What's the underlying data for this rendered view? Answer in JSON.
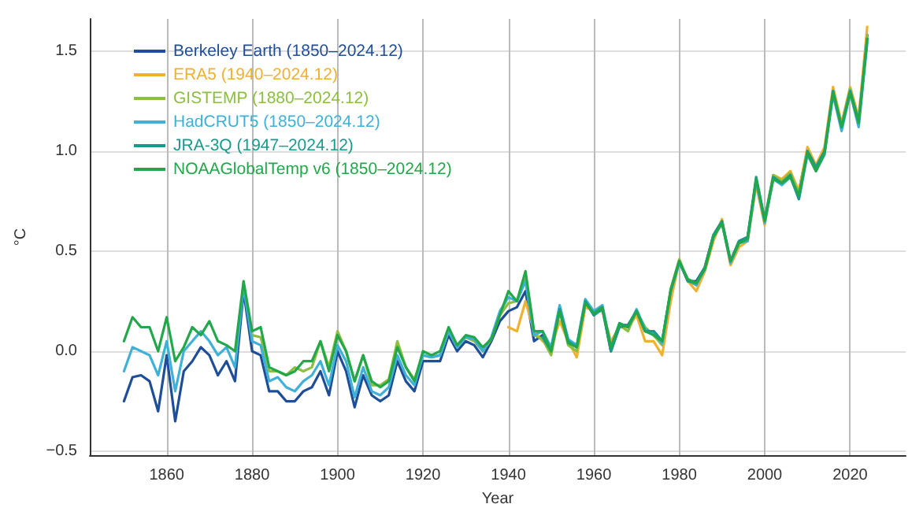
{
  "chart_data": {
    "type": "line",
    "xlabel": "Year",
    "ylabel": "°C",
    "x": [
      1850,
      1852,
      1854,
      1856,
      1858,
      1860,
      1862,
      1864,
      1866,
      1868,
      1870,
      1872,
      1874,
      1876,
      1878,
      1880,
      1882,
      1884,
      1886,
      1888,
      1890,
      1892,
      1894,
      1896,
      1898,
      1900,
      1902,
      1904,
      1906,
      1908,
      1910,
      1912,
      1914,
      1916,
      1918,
      1920,
      1922,
      1924,
      1926,
      1928,
      1930,
      1932,
      1934,
      1936,
      1938,
      1940,
      1942,
      1944,
      1946,
      1948,
      1950,
      1952,
      1954,
      1956,
      1958,
      1960,
      1962,
      1964,
      1966,
      1968,
      1970,
      1972,
      1974,
      1976,
      1978,
      1980,
      1982,
      1984,
      1986,
      1988,
      1990,
      1992,
      1994,
      1996,
      1998,
      2000,
      2002,
      2004,
      2006,
      2008,
      2010,
      2012,
      2014,
      2016,
      2018,
      2020,
      2022,
      2024
    ],
    "series": [
      {
        "name": "Berkeley Earth (1850–2024.12)",
        "color": "#1f4e99",
        "values": [
          -0.25,
          -0.13,
          -0.12,
          -0.15,
          -0.3,
          -0.02,
          -0.35,
          -0.1,
          -0.05,
          0.02,
          -0.02,
          -0.12,
          -0.05,
          -0.15,
          0.3,
          0.0,
          -0.02,
          -0.2,
          -0.2,
          -0.25,
          -0.25,
          -0.2,
          -0.18,
          -0.1,
          -0.22,
          0.0,
          -0.1,
          -0.28,
          -0.12,
          -0.22,
          -0.25,
          -0.22,
          -0.05,
          -0.15,
          -0.2,
          -0.05,
          -0.05,
          -0.05,
          0.08,
          0.0,
          0.05,
          0.03,
          -0.03,
          0.05,
          0.15,
          0.2,
          0.22,
          0.3,
          0.05,
          0.08,
          0.0,
          0.22,
          0.05,
          0.02,
          0.25,
          0.18,
          0.22,
          0.0,
          0.13,
          0.13,
          0.2,
          0.1,
          0.1,
          0.05,
          0.3,
          0.45,
          0.35,
          0.35,
          0.42,
          0.58,
          0.65,
          0.45,
          0.55,
          0.57,
          0.85,
          0.65,
          0.87,
          0.85,
          0.88,
          0.8,
          1.0,
          0.92,
          1.0,
          1.3,
          1.13,
          1.3,
          1.15,
          1.58
        ]
      },
      {
        "name": "ERA5 (1940–2024.12)",
        "color": "#f0b030",
        "values": [
          null,
          null,
          null,
          null,
          null,
          null,
          null,
          null,
          null,
          null,
          null,
          null,
          null,
          null,
          null,
          null,
          null,
          null,
          null,
          null,
          null,
          null,
          null,
          null,
          null,
          null,
          null,
          null,
          null,
          null,
          null,
          null,
          null,
          null,
          null,
          null,
          null,
          null,
          null,
          null,
          null,
          null,
          null,
          null,
          null,
          0.12,
          0.1,
          0.25,
          0.1,
          0.05,
          0.02,
          0.15,
          0.05,
          -0.03,
          0.22,
          0.2,
          0.2,
          0.05,
          0.12,
          0.12,
          0.18,
          0.05,
          0.05,
          -0.02,
          0.25,
          0.45,
          0.35,
          0.3,
          0.4,
          0.55,
          0.66,
          0.43,
          0.52,
          0.55,
          0.83,
          0.63,
          0.88,
          0.86,
          0.9,
          0.8,
          1.02,
          0.93,
          1.02,
          1.32,
          1.14,
          1.32,
          1.17,
          1.62
        ]
      },
      {
        "name": "GISTEMP (1880–2024.12)",
        "color": "#8cbf3f",
        "values": [
          null,
          null,
          null,
          null,
          null,
          null,
          null,
          null,
          null,
          null,
          null,
          null,
          null,
          null,
          null,
          0.08,
          0.07,
          -0.1,
          -0.1,
          -0.12,
          -0.08,
          -0.1,
          -0.08,
          0.05,
          -0.08,
          0.1,
          0.0,
          -0.15,
          -0.02,
          -0.17,
          -0.17,
          -0.14,
          0.05,
          -0.08,
          -0.14,
          -0.02,
          -0.03,
          -0.02,
          0.1,
          0.02,
          0.07,
          0.05,
          0.0,
          0.06,
          0.18,
          0.24,
          0.25,
          0.36,
          0.08,
          0.06,
          -0.02,
          0.2,
          0.03,
          0.0,
          0.24,
          0.19,
          0.22,
          0.0,
          0.13,
          0.1,
          0.2,
          0.12,
          0.08,
          0.03,
          0.31,
          0.46,
          0.35,
          0.33,
          0.42,
          0.58,
          0.64,
          0.45,
          0.55,
          0.56,
          0.84,
          0.66,
          0.88,
          0.85,
          0.89,
          0.79,
          1.0,
          0.91,
          0.99,
          1.3,
          1.13,
          1.31,
          1.15,
          1.58
        ]
      },
      {
        "name": "HadCRUT5 (1850–2024.12)",
        "color": "#3fb0d8",
        "values": [
          -0.1,
          0.02,
          0.0,
          -0.02,
          -0.12,
          0.05,
          -0.2,
          0.0,
          0.05,
          0.1,
          0.05,
          -0.02,
          0.02,
          -0.08,
          0.32,
          0.05,
          0.03,
          -0.15,
          -0.13,
          -0.18,
          -0.2,
          -0.15,
          -0.12,
          -0.05,
          -0.17,
          0.03,
          -0.05,
          -0.23,
          -0.08,
          -0.2,
          -0.22,
          -0.18,
          -0.02,
          -0.12,
          -0.17,
          -0.02,
          -0.03,
          -0.02,
          0.1,
          0.02,
          0.07,
          0.06,
          0.0,
          0.07,
          0.2,
          0.27,
          0.25,
          0.35,
          0.08,
          0.1,
          0.02,
          0.23,
          0.06,
          0.03,
          0.26,
          0.2,
          0.23,
          0.02,
          0.14,
          0.12,
          0.21,
          0.11,
          0.09,
          0.04,
          0.3,
          0.44,
          0.36,
          0.33,
          0.41,
          0.57,
          0.64,
          0.44,
          0.54,
          0.55,
          0.85,
          0.64,
          0.86,
          0.83,
          0.87,
          0.76,
          0.98,
          0.9,
          0.98,
          1.28,
          1.1,
          1.29,
          1.12,
          1.54
        ]
      },
      {
        "name": "JRA-3Q (1947–2024.12)",
        "color": "#1a9a8a",
        "values": [
          null,
          null,
          null,
          null,
          null,
          null,
          null,
          null,
          null,
          null,
          null,
          null,
          null,
          null,
          null,
          null,
          null,
          null,
          null,
          null,
          null,
          null,
          null,
          null,
          null,
          null,
          null,
          null,
          null,
          null,
          null,
          null,
          null,
          null,
          null,
          null,
          null,
          null,
          null,
          null,
          null,
          null,
          null,
          null,
          null,
          null,
          null,
          null,
          null,
          0.07,
          0.0,
          0.21,
          0.05,
          0.02,
          0.25,
          0.18,
          0.21,
          0.0,
          0.12,
          0.13,
          0.2,
          0.1,
          0.1,
          0.05,
          0.3,
          0.45,
          0.35,
          0.34,
          0.42,
          0.58,
          0.65,
          0.45,
          0.55,
          0.57,
          0.87,
          0.66,
          0.87,
          0.84,
          0.88,
          0.76,
          1.0,
          0.92,
          1.0,
          1.3,
          1.12,
          1.3,
          1.15,
          1.56
        ]
      },
      {
        "name": "NOAAGlobalTemp v6 (1850–2024.12)",
        "color": "#22a84a",
        "values": [
          0.05,
          0.17,
          0.12,
          0.12,
          0.0,
          0.17,
          -0.05,
          0.02,
          0.12,
          0.08,
          0.15,
          0.05,
          0.03,
          0.0,
          0.35,
          0.1,
          0.12,
          -0.08,
          -0.1,
          -0.12,
          -0.1,
          -0.05,
          -0.05,
          0.05,
          -0.1,
          0.08,
          0.0,
          -0.15,
          -0.02,
          -0.15,
          -0.18,
          -0.15,
          0.02,
          -0.08,
          -0.15,
          0.0,
          -0.02,
          0.0,
          0.12,
          0.03,
          0.08,
          0.07,
          0.02,
          0.06,
          0.18,
          0.3,
          0.25,
          0.4,
          0.1,
          0.1,
          0.0,
          0.2,
          0.04,
          0.02,
          0.24,
          0.19,
          0.22,
          0.02,
          0.14,
          0.12,
          0.2,
          0.1,
          0.08,
          0.05,
          0.31,
          0.45,
          0.36,
          0.34,
          0.41,
          0.57,
          0.64,
          0.45,
          0.54,
          0.56,
          0.86,
          0.65,
          0.86,
          0.84,
          0.87,
          0.78,
          0.99,
          0.9,
          0.99,
          1.29,
          1.12,
          1.29,
          1.14,
          1.56
        ]
      }
    ],
    "xlim": [
      1842,
      2033
    ],
    "xticks": [
      1860,
      1880,
      1900,
      1920,
      1940,
      1960,
      1980,
      2000,
      2020
    ],
    "ylim": [
      -0.52,
      1.66
    ],
    "yticks": [
      {
        "value": -0.5,
        "label": "−0.5"
      },
      {
        "value": 0,
        "label": "0.0"
      },
      {
        "value": 0.5,
        "label": "0.5"
      },
      {
        "value": 1,
        "label": "1.0"
      },
      {
        "value": 1.5,
        "label": "1.5"
      }
    ],
    "grid": true,
    "legend": "top left",
    "marker": "none",
    "line_style": "solid"
  }
}
